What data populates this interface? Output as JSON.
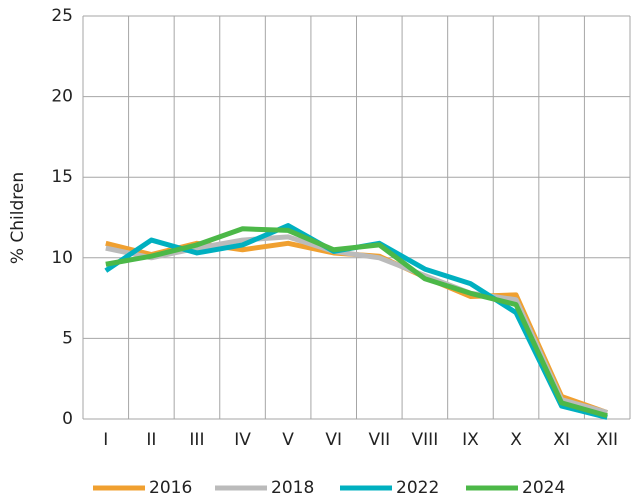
{
  "chart_data": {
    "type": "line",
    "y_label": "% Children",
    "categories": [
      "I",
      "II",
      "III",
      "IV",
      "V",
      "VI",
      "VII",
      "VIII",
      "IX",
      "X",
      "XI",
      "XII"
    ],
    "series": [
      {
        "name": "2016",
        "color": "#f0a030",
        "values": [
          10.9,
          10.2,
          10.9,
          10.5,
          10.9,
          10.3,
          10.1,
          8.8,
          7.6,
          7.7,
          1.4,
          0.4
        ]
      },
      {
        "name": "2018",
        "color": "#bbbbbb",
        "values": [
          10.6,
          10.0,
          10.6,
          11.1,
          11.3,
          10.4,
          10.0,
          8.9,
          7.8,
          7.4,
          1.2,
          0.4
        ]
      },
      {
        "name": "2022",
        "color": "#00b0c0",
        "values": [
          9.2,
          11.1,
          10.3,
          10.8,
          12.0,
          10.4,
          10.9,
          9.3,
          8.4,
          6.6,
          0.8,
          0.1
        ]
      },
      {
        "name": "2024",
        "color": "#4cb848",
        "values": [
          9.6,
          10.1,
          10.8,
          11.8,
          11.7,
          10.5,
          10.8,
          8.7,
          7.8,
          7.1,
          1.0,
          0.2
        ]
      }
    ],
    "ylim": [
      0,
      25
    ],
    "yticks": [
      0,
      5,
      10,
      15,
      20,
      25
    ],
    "grid": true,
    "legend": "bottom"
  }
}
